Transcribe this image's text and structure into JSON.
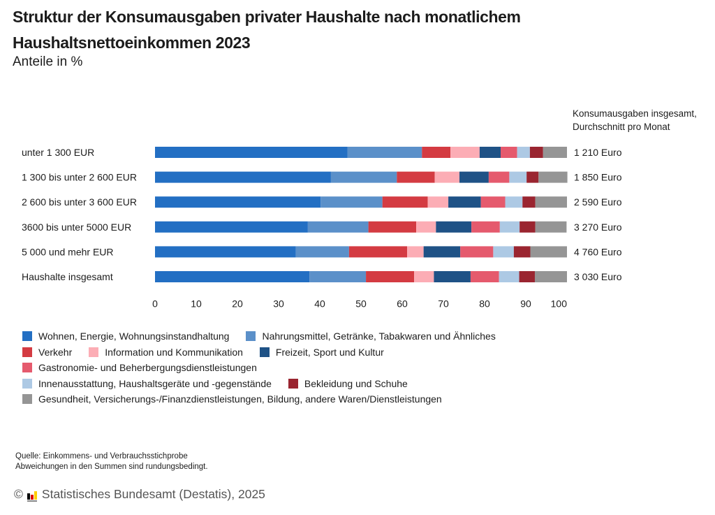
{
  "header": {
    "title": "Struktur der Konsumausgaben privater Haushalte nach monatlichem Haushaltsnettoeinkommen 2023",
    "subtitle": "Anteile in %",
    "totals_header_line1": "Konsumausgaben insgesamt,",
    "totals_header_line2": "Durchschnitt pro Monat"
  },
  "chart_data": {
    "type": "bar",
    "orientation": "horizontal",
    "stacked": true,
    "title": "Struktur der Konsumausgaben privater Haushalte nach monatlichem Haushaltsnettoeinkommen 2023",
    "subtitle": "Anteile in %",
    "xlabel": "",
    "ylabel": "",
    "xlim": [
      0,
      100
    ],
    "xticks": [
      0,
      10,
      20,
      30,
      40,
      50,
      60,
      70,
      80,
      90,
      100
    ],
    "grid": false,
    "legend_position": "bottom",
    "categories": [
      "unter 1 300 EUR",
      "1 300 bis unter 2 600 EUR",
      "2 600 bis unter 3 600 EUR",
      "3600 bis unter 5000 EUR",
      "5 000 und mehr EUR",
      "Haushalte insgesamt"
    ],
    "totals_label": "Konsumausgaben insgesamt, Durchschnitt pro Monat",
    "totals": [
      "1 210 Euro",
      "1 850 Euro",
      "2 590 Euro",
      "3 270 Euro",
      "4 760 Euro",
      "3 030 Euro"
    ],
    "series": [
      {
        "name": "Wohnen, Energie, Wohnungsinstandhaltung",
        "color": "#236fc3",
        "values": [
          46.7,
          42.7,
          40.2,
          37.1,
          34.2,
          37.5
        ]
      },
      {
        "name": "Nahrungsmittel, Getränke, Tabakwaren und Ähnliches",
        "color": "#5b90c9",
        "values": [
          18.1,
          16.0,
          15.0,
          14.7,
          12.9,
          13.7
        ]
      },
      {
        "name": "Verkehr",
        "color": "#d43b42",
        "values": [
          6.9,
          9.2,
          11.0,
          11.6,
          14.1,
          11.7
        ]
      },
      {
        "name": "Information und Kommunikation",
        "color": "#fcadb5",
        "values": [
          7.1,
          6.0,
          5.0,
          4.8,
          4.0,
          4.8
        ]
      },
      {
        "name": "Freizeit, Sport und Kultur",
        "color": "#1f5286",
        "values": [
          5.1,
          7.1,
          7.9,
          8.6,
          8.9,
          8.9
        ]
      },
      {
        "name": "Gastronomie- und Beherbergungsdienstleistungen",
        "color": "#e55a6d",
        "values": [
          4.0,
          5.0,
          5.9,
          6.9,
          8.0,
          6.9
        ]
      },
      {
        "name": "Innenausstattung, Haushaltsgeräte und -gegenstände",
        "color": "#adc9e4",
        "values": [
          3.1,
          4.2,
          4.2,
          4.8,
          5.0,
          4.9
        ]
      },
      {
        "name": "Bekleidung und Schuhe",
        "color": "#9a2530",
        "values": [
          3.2,
          2.9,
          3.1,
          3.8,
          4.0,
          3.8
        ]
      },
      {
        "name": "Gesundheit, Versicherungs-/Finanzdienstleistungen, Bildung, andere Waren/Dienstleistungen",
        "color": "#959595",
        "values": [
          5.8,
          7.0,
          7.7,
          7.6,
          8.9,
          7.8
        ]
      }
    ]
  },
  "legend_rows": [
    [
      0,
      1
    ],
    [
      2,
      3,
      4
    ],
    [
      5
    ],
    [
      6,
      7
    ],
    [
      8
    ]
  ],
  "footer": {
    "source": "Quelle: Einkommens- und Verbrauchsstichprobe",
    "note": "Abweichungen in den Summen sind rundungsbedingt.",
    "copyright_symbol": "©",
    "copyright_text": "Statistisches Bundesamt (Destatis), 2025"
  }
}
